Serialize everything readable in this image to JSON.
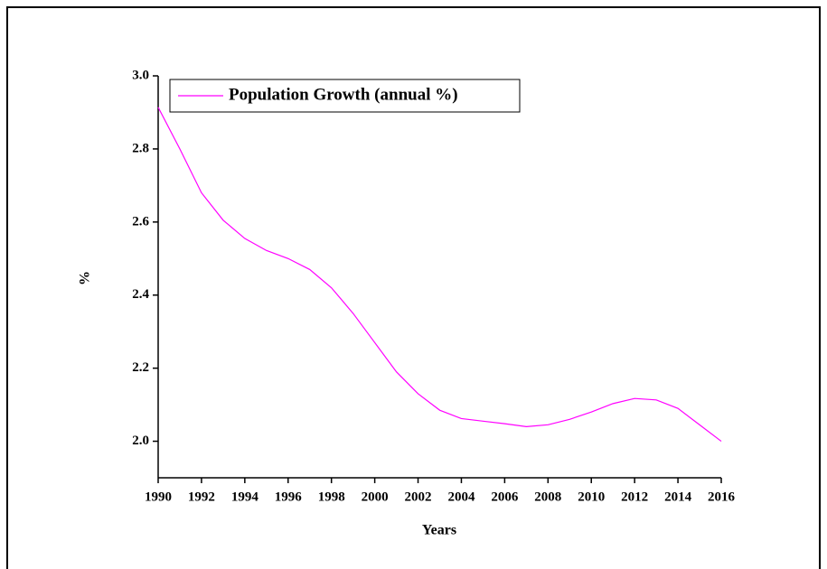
{
  "chart_data": {
    "type": "line",
    "x_label": "Years",
    "y_label": "%",
    "x": [
      1990,
      1991,
      1992,
      1993,
      1994,
      1995,
      1996,
      1997,
      1998,
      1999,
      2000,
      2001,
      2002,
      2003,
      2004,
      2005,
      2006,
      2007,
      2008,
      2009,
      2010,
      2011,
      2012,
      2013,
      2014,
      2015,
      2016
    ],
    "series": [
      {
        "name": "Population Growth (annual %)",
        "color": "#ff00ff",
        "values": [
          2.914,
          2.8,
          2.68,
          2.605,
          2.555,
          2.522,
          2.5,
          2.47,
          2.42,
          2.35,
          2.27,
          2.19,
          2.13,
          2.085,
          2.062,
          2.055,
          2.048,
          2.04,
          2.045,
          2.06,
          2.08,
          2.103,
          2.117,
          2.113,
          2.09,
          2.045,
          2.0
        ]
      }
    ],
    "xlim": [
      1990,
      2016
    ],
    "xticks": [
      1990,
      1992,
      1994,
      1996,
      1998,
      2000,
      2002,
      2004,
      2006,
      2008,
      2010,
      2012,
      2014,
      2016
    ],
    "ylim": [
      1.9,
      3.0
    ],
    "yticks": [
      {
        "value": 2.0,
        "label": "2.0"
      },
      2.2,
      2.4,
      2.6,
      2.8,
      {
        "value": 3.0,
        "label": "3.0"
      }
    ],
    "legend": "top-left"
  }
}
